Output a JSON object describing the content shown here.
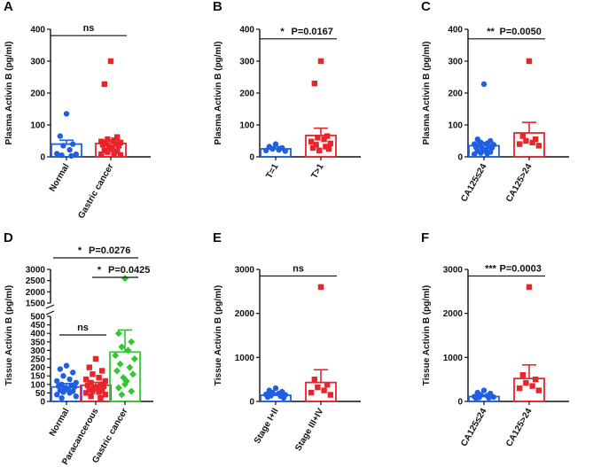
{
  "figure": {
    "description_domain": "multi-panel scientific bar charts with scatter points"
  },
  "chart_data": [
    {
      "panel": "A",
      "type": "bar",
      "ylabel": "Plasma Activin B (pg/ml)",
      "ylim": [
        0,
        400
      ],
      "yticks": [
        0,
        100,
        200,
        300,
        400
      ],
      "categories": [
        "Normal",
        "Gastric cancer"
      ],
      "series": [
        {
          "name": "Normal",
          "color": "#1f5fe0",
          "marker": "circle",
          "mean": 40,
          "sem_upper": 52,
          "points": [
            135,
            65,
            40,
            35,
            22,
            10,
            8,
            5,
            3
          ]
        },
        {
          "name": "Gastric cancer",
          "color": "#e8252b",
          "marker": "square",
          "mean": 42,
          "sem_upper": 52,
          "points": [
            300,
            228,
            62,
            55,
            52,
            48,
            45,
            42,
            40,
            38,
            35,
            30,
            28,
            25,
            20,
            18,
            15,
            10,
            8,
            6
          ]
        }
      ],
      "significance": [
        {
          "label": "ns",
          "from": 0,
          "to": 1,
          "y": 380
        }
      ]
    },
    {
      "panel": "B",
      "type": "bar",
      "ylabel": "Plasma Activin B (pg/ml)",
      "ylim": [
        0,
        400
      ],
      "yticks": [
        0,
        100,
        200,
        300,
        400
      ],
      "categories": [
        "T=1",
        "T>1"
      ],
      "series": [
        {
          "name": "T=1",
          "color": "#1f5fe0",
          "marker": "circle",
          "mean": 25,
          "sem_upper": 32,
          "points": [
            40,
            32,
            28,
            25,
            22,
            20,
            18
          ]
        },
        {
          "name": "T>1",
          "color": "#e8252b",
          "marker": "square",
          "mean": 67,
          "sem_upper": 90,
          "points": [
            300,
            230,
            65,
            60,
            55,
            48,
            42,
            38,
            32,
            28,
            25,
            20
          ]
        }
      ],
      "significance": [
        {
          "label": "*",
          "p": "P=0.0167",
          "from": 0,
          "to": 1,
          "y": 370
        }
      ]
    },
    {
      "panel": "C",
      "type": "bar",
      "ylabel": "Plasma Activin B (pg/ml)",
      "ylim": [
        0,
        400
      ],
      "yticks": [
        0,
        100,
        200,
        300,
        400
      ],
      "categories": [
        "CA125≤24",
        "CA125>24"
      ],
      "series": [
        {
          "name": "CA125≤24",
          "color": "#1f5fe0",
          "marker": "circle",
          "mean": 35,
          "sem_upper": 45,
          "points": [
            228,
            55,
            50,
            45,
            42,
            40,
            38,
            35,
            32,
            30,
            28,
            25,
            22,
            20,
            18,
            15,
            12,
            10,
            8
          ]
        },
        {
          "name": "CA125>24",
          "color": "#e8252b",
          "marker": "square",
          "mean": 75,
          "sem_upper": 108,
          "points": [
            300,
            65,
            55,
            50,
            45,
            40,
            35
          ]
        }
      ],
      "significance": [
        {
          "label": "**",
          "p": "P=0.0050",
          "from": 0,
          "to": 1,
          "y": 370
        }
      ]
    },
    {
      "panel": "D",
      "type": "bar",
      "broken_axis": true,
      "ylabel": "Tissue Activin B (pg/ml)",
      "ylim": [
        0,
        3000
      ],
      "yticks": [
        0,
        50,
        100,
        150,
        200,
        250,
        300,
        350,
        400,
        450,
        500,
        1500,
        2000,
        2500,
        3000
      ],
      "categories": [
        "Normal",
        "Paracancerous",
        "Gastric cancer"
      ],
      "series": [
        {
          "name": "Normal",
          "color": "#1f5fe0",
          "marker": "circle",
          "mean": 85,
          "sem_upper": 105,
          "points": [
            210,
            190,
            170,
            150,
            130,
            120,
            110,
            100,
            95,
            90,
            85,
            80,
            75,
            70,
            65,
            60,
            55,
            50,
            40,
            30,
            20
          ]
        },
        {
          "name": "Paracancerous",
          "color": "#e8252b",
          "marker": "square",
          "mean": 95,
          "sem_upper": 112,
          "points": [
            250,
            200,
            180,
            160,
            140,
            130,
            120,
            110,
            100,
            95,
            90,
            85,
            80,
            75,
            70,
            65,
            60,
            55,
            50,
            40,
            30,
            20
          ]
        },
        {
          "name": "Gastric cancer",
          "color": "#32c832",
          "marker": "diamond",
          "mean": 290,
          "sem_upper": 420,
          "points": [
            2600,
            400,
            350,
            320,
            300,
            270,
            250,
            220,
            200,
            180,
            160,
            140,
            120,
            100,
            80,
            60,
            40
          ]
        }
      ],
      "significance": [
        {
          "label": "*",
          "p": "P=0.0276",
          "from": 0,
          "to": 2
        },
        {
          "label": "*",
          "p": "P=0.0425",
          "from": 1,
          "to": 2
        },
        {
          "label": "ns",
          "from": 0,
          "to": 1
        }
      ]
    },
    {
      "panel": "E",
      "type": "bar",
      "ylabel": "Tissue Activin B (pg/ml)",
      "ylim": [
        0,
        3000
      ],
      "yticks": [
        0,
        1000,
        2000,
        3000
      ],
      "categories": [
        "Stage I+II",
        "Stage III+IV"
      ],
      "series": [
        {
          "name": "Stage I+II",
          "color": "#1f5fe0",
          "marker": "circle",
          "mean": 140,
          "sem_upper": 185,
          "points": [
            300,
            250,
            220,
            200,
            180,
            160,
            150,
            130,
            120,
            100,
            80
          ]
        },
        {
          "name": "Stage III+IV",
          "color": "#e8252b",
          "marker": "square",
          "mean": 430,
          "sem_upper": 720,
          "points": [
            2600,
            500,
            380,
            320,
            250,
            200,
            150
          ]
        }
      ],
      "significance": [
        {
          "label": "ns",
          "from": 0,
          "to": 1,
          "y": 2850
        }
      ]
    },
    {
      "panel": "F",
      "type": "bar",
      "ylabel": "Tissue Activin B (pg/ml)",
      "ylim": [
        0,
        3000
      ],
      "yticks": [
        0,
        1000,
        2000,
        3000
      ],
      "categories": [
        "CA125≤24",
        "CA125>24"
      ],
      "series": [
        {
          "name": "CA125≤24",
          "color": "#1f5fe0",
          "marker": "circle",
          "mean": 110,
          "sem_upper": 145,
          "points": [
            250,
            200,
            180,
            150,
            130,
            110,
            100,
            90,
            80,
            70
          ]
        },
        {
          "name": "CA125>24",
          "color": "#e8252b",
          "marker": "square",
          "mean": 520,
          "sem_upper": 830,
          "points": [
            2600,
            600,
            500,
            420,
            350,
            300,
            250
          ]
        }
      ],
      "significance": [
        {
          "label": "***",
          "p": "P=0.0003",
          "from": 0,
          "to": 1,
          "y": 2850
        }
      ]
    }
  ]
}
